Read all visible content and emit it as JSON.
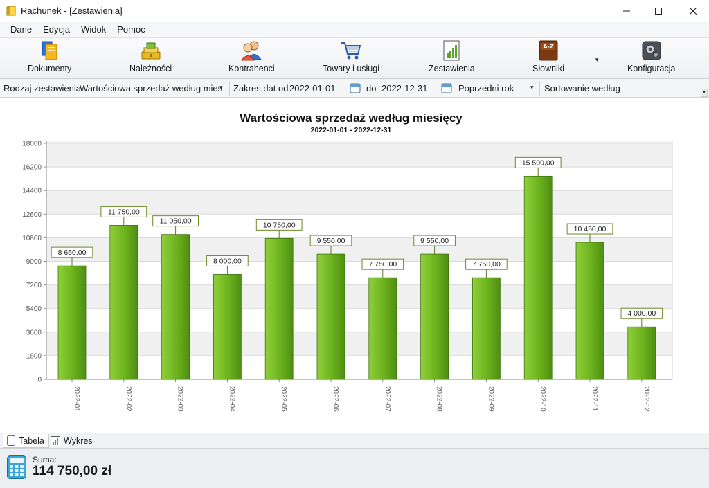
{
  "window": {
    "title": "Rachunek - [Zestawienia]"
  },
  "menu": [
    "Dane",
    "Edycja",
    "Widok",
    "Pomoc"
  ],
  "toolbar": {
    "items": [
      {
        "label": "Dokumenty",
        "icon": "documents-icon"
      },
      {
        "label": "Należności",
        "icon": "receivables-icon"
      },
      {
        "label": "Kontrahenci",
        "icon": "contractors-icon"
      },
      {
        "label": "Towary i usługi",
        "icon": "cart-icon"
      },
      {
        "label": "Zestawienia",
        "icon": "report-icon"
      },
      {
        "label": "Słowniki",
        "icon": "dictionary-icon"
      },
      {
        "label": "Konfiguracja",
        "icon": "settings-icon"
      }
    ],
    "dropdown_arrow": "▾"
  },
  "filters": {
    "report_type_label": "Rodzaj zestawienia",
    "report_type_value": "Wartościowa sprzedaż według mies",
    "date_range_label": "Zakres dat od",
    "date_from": "2022-01-01",
    "date_to_label": "do",
    "date_to": "2022-12-31",
    "period_value": "Poprzedni rok",
    "sort_label": "Sortowanie według"
  },
  "chart_data": {
    "type": "bar",
    "title": "Wartościowa sprzedaż według miesięcy",
    "subtitle": "2022-01-01 - 2022-12-31",
    "categories": [
      "2022-01",
      "2022-02",
      "2022-03",
      "2022-04",
      "2022-05",
      "2022-06",
      "2022-07",
      "2022-08",
      "2022-09",
      "2022-10",
      "2022-11",
      "2022-12"
    ],
    "values": [
      8650,
      11750,
      11050,
      8000,
      10750,
      9550,
      7750,
      9550,
      7750,
      15500,
      10450,
      4000
    ],
    "data_labels": [
      "8 650,00",
      "11 750,00",
      "11 050,00",
      "8 000,00",
      "10 750,00",
      "9 550,00",
      "7 750,00",
      "9 550,00",
      "7 750,00",
      "15 500,00",
      "10 450,00",
      "4 000,00"
    ],
    "yticks": [
      "0",
      "1800",
      "3600",
      "5400",
      "7200",
      "9000",
      "10800",
      "12600",
      "14400",
      "16200",
      "18000"
    ],
    "ylim": [
      0,
      18000
    ],
    "grid": true,
    "bar_color": "#6fb51f",
    "legend": "none"
  },
  "tabs": [
    {
      "label": "Tabela",
      "active": true
    },
    {
      "label": "Wykres",
      "active": false
    }
  ],
  "summary": {
    "label": "Suma:",
    "value": "114 750,00 zł"
  }
}
